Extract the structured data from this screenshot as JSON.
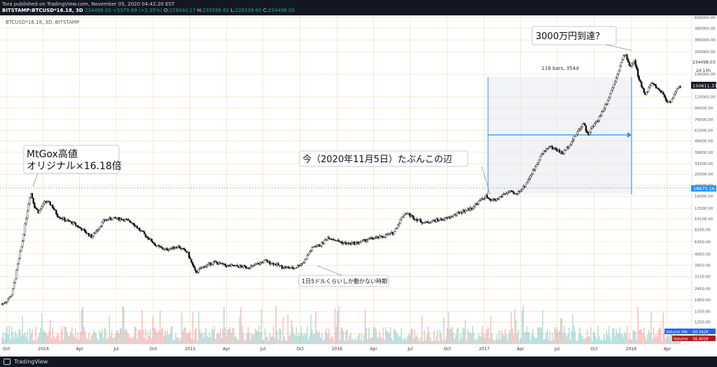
{
  "header": {
    "published": "Tora published on TradingView.com, November 05, 2020 04:42:20 EST",
    "symbol": "BITSTAMP:BTCUSD*16.18, 3D",
    "last": "234498.03",
    "change": "+5379.69 (+2.35%)",
    "ohlc_o_label": "O:",
    "ohlc_o": "229040.17",
    "ohlc_h_label": "H:",
    "ohlc_h": "235586.62",
    "ohlc_l_label": "L:",
    "ohlc_l": "228339.60",
    "ohlc_c_label": "C:",
    "ohlc_c": "234498.03"
  },
  "footer": {
    "brand": "TradingView",
    "logo_icon": "tradingview-logo-icon"
  },
  "chart_data": {
    "type": "candlestick",
    "title": "BTCUSD*16.18, 3D, BITSTAMP",
    "xlabel": "",
    "ylabel": "",
    "scale": "log",
    "ylim": [
      800,
      600000
    ],
    "x_ticks": [
      "Oct",
      "2014",
      "Apr",
      "Jul",
      "Oct",
      "2015",
      "Apr",
      "Jul",
      "Oct",
      "2016",
      "Apr",
      "Jul",
      "Oct",
      "2017",
      "Apr",
      "Jul",
      "Oct",
      "2018",
      "Apr"
    ],
    "y_ticks": [
      600000,
      480000,
      380000,
      300000,
      190000,
      120000,
      96000,
      76000,
      61000,
      49000,
      39000,
      31000,
      25000,
      20000,
      16000,
      12500,
      10100,
      8100,
      6350,
      4950,
      3950,
      3150,
      2450,
      1950,
      1550,
      1250,
      980
    ],
    "series": [
      {
        "name": "BTCUSD*16.18",
        "x": [
          "2013-09-20",
          "2013-10-01",
          "2013-10-15",
          "2013-11-01",
          "2013-11-10",
          "2013-11-20",
          "2013-11-30",
          "2013-12-10",
          "2013-12-20",
          "2014-01-05",
          "2014-01-20",
          "2014-02-05",
          "2014-02-25",
          "2014-03-15",
          "2014-04-10",
          "2014-05-01",
          "2014-06-01",
          "2014-06-20",
          "2014-07-15",
          "2014-08-10",
          "2014-09-01",
          "2014-09-20",
          "2014-10-10",
          "2014-11-01",
          "2014-12-01",
          "2014-12-25",
          "2015-01-14",
          "2015-02-01",
          "2015-03-01",
          "2015-04-01",
          "2015-05-01",
          "2015-06-01",
          "2015-07-05",
          "2015-07-25",
          "2015-08-20",
          "2015-09-15",
          "2015-10-10",
          "2015-10-25",
          "2015-11-05",
          "2015-11-20",
          "2015-12-10",
          "2016-01-05",
          "2016-01-25",
          "2016-02-20",
          "2016-03-20",
          "2016-04-20",
          "2016-05-20",
          "2016-06-10",
          "2016-06-20",
          "2016-07-10",
          "2016-08-05",
          "2016-09-01",
          "2016-10-01",
          "2016-11-01",
          "2016-12-01",
          "2016-12-25",
          "2017-01-05",
          "2017-01-15",
          "2017-02-01",
          "2017-02-20",
          "2017-03-05",
          "2017-03-20",
          "2017-04-10",
          "2017-05-01",
          "2017-05-20",
          "2017-06-10",
          "2017-06-25",
          "2017-07-15",
          "2017-08-05",
          "2017-08-25",
          "2017-09-05",
          "2017-09-15",
          "2017-09-25",
          "2017-10-10",
          "2017-10-25",
          "2017-11-05",
          "2017-11-20",
          "2017-12-05",
          "2017-12-17",
          "2017-12-30",
          "2018-01-10",
          "2018-01-20",
          "2018-02-06",
          "2018-02-20",
          "2018-03-05",
          "2018-03-20",
          "2018-04-01",
          "2018-04-10",
          "2018-04-25",
          "2018-05-05"
        ],
        "close": [
          1800,
          1900,
          2200,
          4500,
          6500,
          11000,
          17500,
          13000,
          11500,
          14500,
          13500,
          10800,
          9800,
          9300,
          8000,
          7000,
          9800,
          10200,
          10100,
          9400,
          7800,
          6800,
          5800,
          5400,
          5800,
          5100,
          3400,
          3800,
          4200,
          3900,
          3850,
          3800,
          4300,
          4100,
          3800,
          3700,
          4200,
          5200,
          5800,
          5900,
          7000,
          6400,
          6100,
          6200,
          6700,
          7000,
          7600,
          10500,
          11500,
          10300,
          9300,
          9800,
          10200,
          11500,
          12600,
          15000,
          16000,
          14500,
          15000,
          16800,
          17500,
          16500,
          19500,
          26000,
          36000,
          44000,
          42000,
          38000,
          48000,
          62000,
          72000,
          55000,
          64000,
          75000,
          95000,
          115000,
          160000,
          230000,
          290000,
          220000,
          250000,
          170000,
          125000,
          160000,
          145000,
          130000,
          108000,
          110000,
          140000,
          150000
        ]
      }
    ],
    "current_price": "234498.03",
    "price_label": "150611.37",
    "countdown": "2d 15h",
    "ref_price": "18675.16",
    "volume_ma_label": "Volume MA",
    "volume_ma_value": "40.342K",
    "volume_label": "Volume",
    "volume_value": "36.402K",
    "measure_label": "118 bars, 354d",
    "annotations": {
      "mtgox_line1": "MtGox高値",
      "mtgox_line2": "オリジナル×16.18倍",
      "now": "今（2020年11月5日）たぶんこの辺",
      "target": "3000万円到達？",
      "flat": "1日5ドルくらいしか動かない時期"
    },
    "colors": {
      "up": "#26a69a",
      "down": "#ef5350",
      "candle": "#111111",
      "grid": "#f3dcb4",
      "measure": "#2196f3",
      "ref_line": "#9598a1"
    }
  }
}
